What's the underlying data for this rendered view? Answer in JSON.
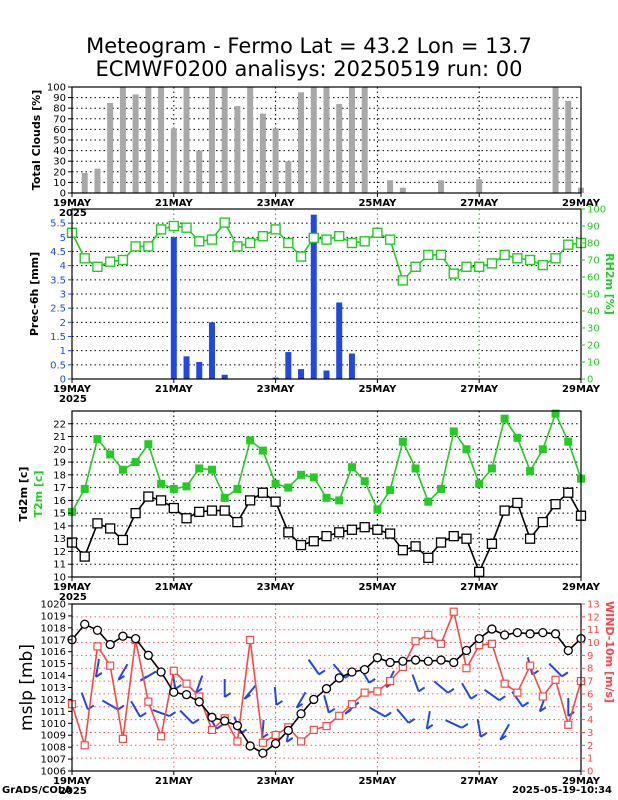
{
  "header": {
    "title_line1": "Meteogram - Fermo Lat = 43.2 Lon = 13.7",
    "title_line2": "ECMWF0200 analisys: 20250519 run: 00"
  },
  "footer": {
    "left": "GrADS/COLA",
    "right": "2025-05-19-10:34"
  },
  "x_axis": {
    "range": [
      "2025-05-19 00Z",
      "2025-05-29 00Z"
    ],
    "ticks": [
      "19MAY",
      "21MAY",
      "23MAY",
      "25MAY",
      "27MAY",
      "29MAY"
    ],
    "year_label": "2025"
  },
  "chart_data": [
    {
      "type": "bar",
      "name": "clouds",
      "ylabel": "Total Clouds [%]",
      "ylim": [
        0,
        100
      ],
      "yticks": [
        0,
        10,
        20,
        30,
        40,
        50,
        60,
        70,
        80,
        90,
        100
      ],
      "x_hours": [
        6,
        12,
        18,
        24,
        30,
        36,
        42,
        48,
        54,
        60,
        66,
        72,
        78,
        84,
        90,
        96,
        102,
        108,
        114,
        120,
        126,
        132,
        138,
        144,
        150,
        156,
        162,
        168,
        174,
        180,
        186,
        192,
        198,
        204,
        210,
        216,
        222,
        228,
        234,
        240
      ],
      "values": [
        19,
        23,
        85,
        100,
        93,
        100,
        100,
        61,
        100,
        40,
        100,
        100,
        82,
        100,
        75,
        61,
        30,
        95,
        100,
        100,
        84,
        100,
        100,
        0,
        12,
        5,
        0,
        0,
        12,
        0,
        0,
        13,
        0,
        0,
        0,
        0,
        0,
        100,
        87,
        5
      ],
      "colors": {
        "bar": "#a8a8a8"
      }
    },
    {
      "type": "bar+line",
      "name": "precipitation_humidity",
      "ylabel": "Prec-6h [mm]",
      "ylim": [
        0,
        6
      ],
      "yticks": [
        0,
        0.5,
        1,
        1.5,
        2,
        2.5,
        3,
        3.5,
        4,
        4.5,
        5,
        5.5
      ],
      "y2label": "RH2m [%]",
      "y2lim": [
        0,
        100
      ],
      "y2ticks": [
        0,
        10,
        20,
        30,
        40,
        50,
        60,
        70,
        80,
        90,
        100
      ],
      "precip": {
        "x_hours": [
          48,
          54,
          60,
          66,
          72,
          96,
          102,
          108,
          114,
          120,
          126,
          132
        ],
        "values": [
          5.0,
          0.8,
          0.6,
          2.0,
          0.15,
          0.05,
          0.95,
          0.35,
          5.8,
          0.3,
          2.7,
          0.9
        ],
        "color": "#2248e0"
      },
      "rh": {
        "x_hours": [
          0,
          6,
          12,
          18,
          24,
          30,
          36,
          42,
          48,
          54,
          60,
          66,
          72,
          78,
          84,
          90,
          96,
          102,
          108,
          114,
          120,
          126,
          132,
          138,
          144,
          150,
          156,
          162,
          168,
          174,
          180,
          186,
          192,
          198,
          204,
          210,
          216,
          222,
          228,
          234,
          240
        ],
        "values": [
          86,
          71,
          66,
          69,
          70,
          78,
          78,
          88,
          90,
          89,
          81,
          82,
          92,
          78,
          80,
          84,
          88,
          80,
          72,
          83,
          82,
          84,
          80,
          81,
          86,
          82,
          58,
          66,
          73,
          73,
          62,
          66,
          66,
          68,
          73,
          71,
          70,
          67,
          71,
          79,
          80
        ],
        "color": "#22cc22"
      }
    },
    {
      "type": "line",
      "name": "temperature",
      "ylabel": "Td2m [c]",
      "ylabel2": "T2m [c]",
      "ylim": [
        10,
        23
      ],
      "yticks": [
        10,
        11,
        12,
        13,
        14,
        15,
        16,
        17,
        18,
        19,
        20,
        21,
        22
      ],
      "x_hours": [
        0,
        6,
        12,
        18,
        24,
        30,
        36,
        42,
        48,
        54,
        60,
        66,
        72,
        78,
        84,
        90,
        96,
        102,
        108,
        114,
        120,
        126,
        132,
        138,
        144,
        150,
        156,
        162,
        168,
        174,
        180,
        186,
        192,
        198,
        204,
        210,
        216,
        222,
        228,
        234,
        240
      ],
      "series": [
        {
          "name": "T2m",
          "color": "#22cc22",
          "marker": "filled-square",
          "values": [
            15.1,
            16.9,
            20.8,
            19.6,
            18.4,
            19.0,
            20.4,
            17.3,
            16.9,
            17.1,
            18.5,
            18.4,
            16.2,
            16.9,
            20.7,
            19.9,
            17.3,
            17.0,
            18.0,
            17.8,
            16.2,
            16.0,
            18.6,
            17.5,
            15.3,
            16.8,
            20.6,
            18.5,
            15.9,
            16.9,
            21.4,
            20.0,
            17.3,
            18.5,
            22.4,
            20.9,
            18.3,
            20.0,
            22.8,
            20.6,
            17.7
          ]
        },
        {
          "name": "Td2m",
          "color": "#000000",
          "marker": "open-square",
          "values": [
            12.7,
            11.6,
            14.2,
            13.8,
            12.9,
            15.0,
            16.3,
            16.0,
            15.4,
            14.6,
            15.1,
            15.2,
            15.2,
            14.3,
            16.0,
            16.6,
            15.9,
            13.5,
            12.5,
            12.8,
            13.2,
            13.5,
            13.7,
            13.9,
            13.7,
            13.4,
            12.1,
            12.4,
            11.5,
            12.7,
            13.2,
            13.0,
            10.4,
            12.6,
            15.2,
            15.8,
            13.0,
            14.3,
            15.7,
            16.6,
            14.8
          ]
        }
      ]
    },
    {
      "type": "line",
      "name": "pressure_wind",
      "ylabel": "mslp [mb]",
      "ylim": [
        1006,
        1020
      ],
      "yticks": [
        1006,
        1007,
        1008,
        1009,
        1010,
        1011,
        1012,
        1013,
        1014,
        1015,
        1016,
        1017,
        1018,
        1019,
        1020
      ],
      "y2label": "WIND-10m [m/s]",
      "y2lim": [
        0,
        13
      ],
      "y2ticks": [
        0,
        1,
        2,
        3,
        4,
        5,
        6,
        7,
        8,
        9,
        10,
        11,
        12,
        13
      ],
      "x_hours": [
        0,
        6,
        12,
        18,
        24,
        30,
        36,
        42,
        48,
        54,
        60,
        66,
        72,
        78,
        84,
        90,
        96,
        102,
        108,
        114,
        120,
        126,
        132,
        138,
        144,
        150,
        156,
        162,
        168,
        174,
        180,
        186,
        192,
        198,
        204,
        210,
        216,
        222,
        228,
        234,
        240
      ],
      "mslp": {
        "color": "#000000",
        "marker": "open-circle",
        "values": [
          1017.0,
          1018.3,
          1017.8,
          1016.6,
          1017.3,
          1017.1,
          1015.7,
          1014.3,
          1012.6,
          1012.4,
          1011.8,
          1010.5,
          1010.2,
          1009.8,
          1008.1,
          1007.5,
          1008.3,
          1009.4,
          1010.8,
          1012.0,
          1012.9,
          1013.8,
          1014.3,
          1014.5,
          1015.5,
          1015.1,
          1015.2,
          1015.3,
          1015.2,
          1015.3,
          1015.1,
          1016.1,
          1017.1,
          1017.9,
          1017.4,
          1017.6,
          1017.5,
          1017.6,
          1017.5,
          1016.1,
          1017.1
        ]
      },
      "wind": {
        "color": "#ff4444",
        "marker": "open-square",
        "values": [
          5.2,
          2.0,
          9.7,
          8.2,
          2.5,
          10.2,
          5.4,
          2.7,
          7.8,
          6.8,
          5.8,
          3.2,
          4.1,
          2.3,
          10.2,
          2.2,
          2.8,
          3.4,
          2.3,
          3.2,
          3.5,
          4.3,
          5.2,
          6.1,
          6.2,
          7.0,
          8.1,
          10.1,
          10.6,
          9.9,
          12.4,
          8.0,
          9.8,
          9.9,
          6.8,
          6.1,
          8.2,
          5.8,
          7.1,
          3.6,
          7.0
        ]
      },
      "wind_barbs": {
        "color": "#2248e0",
        "note": "blue wind direction sticks"
      }
    }
  ]
}
